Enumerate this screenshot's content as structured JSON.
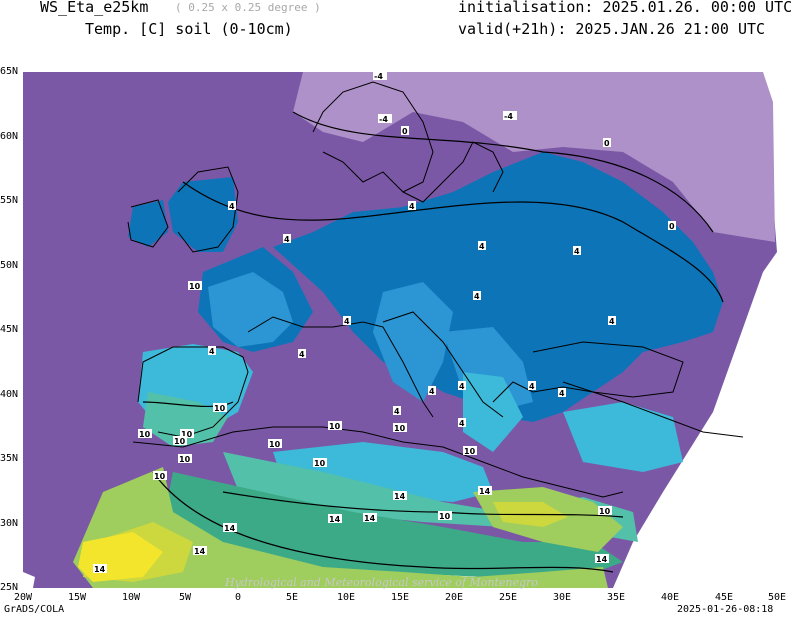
{
  "header": {
    "model": "WS_Eta_e25km",
    "resolution": "( 0.25 x 0.25 degree )",
    "variable": "Temp. [C] soil (0-10cm)",
    "initialisation": "initialisation: 2025.01.26. 00:00 UTC",
    "valid": "valid(+21h): 2025.JAN.26 21:00 UTC"
  },
  "map": {
    "watermark": "Hydrological and Meteorological service of Montenegro",
    "lon_labels": [
      "20W",
      "15W",
      "10W",
      "5W",
      "0",
      "5E",
      "10E",
      "15E",
      "20E",
      "25E",
      "30E",
      "35E",
      "40E",
      "45E",
      "50E"
    ],
    "lat_labels": [
      "65N",
      "60N",
      "55N",
      "50N",
      "45N",
      "40N",
      "35N",
      "30N",
      "25N"
    ],
    "contour_labels": [
      "-4",
      "0",
      "0",
      "-4",
      "-4",
      "0",
      "4",
      "4",
      "4",
      "4",
      "4",
      "4",
      "4",
      "4",
      "4",
      "4",
      "4",
      "4",
      "4",
      "4",
      "4",
      "4",
      "10",
      "10",
      "10",
      "10",
      "10",
      "10",
      "10",
      "10",
      "10",
      "10",
      "10",
      "10",
      "14",
      "14",
      "14",
      "14",
      "14",
      "14",
      "14",
      "14",
      "10",
      "10"
    ],
    "colors": {
      "below_0": "#ae91c8",
      "0_to_4": "#7b58a6",
      "4_to_6": "#0d74b8",
      "6_to_8": "#2b96d3",
      "8_to_10": "#3db9d9",
      "10_to_12": "#53c1a9",
      "12_to_14": "#3caa87",
      "14_to_16": "#9fcd5e",
      "16_to_18": "#cdd73e",
      "above_18": "#f3e52b",
      "missing": "#ffffff"
    }
  },
  "footer": {
    "left": "GrADS/COLA",
    "right": "2025-01-26-08:18"
  }
}
